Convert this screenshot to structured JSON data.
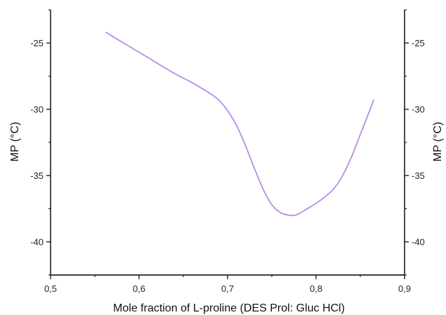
{
  "chart_data": {
    "type": "line",
    "title": "",
    "xlabel": "Mole fraction of L-proline  (DES Prol: Gluc HCl)",
    "ylabel": "MP (°C)",
    "ylabel_right": "MP (°C)",
    "xlim": [
      0.5,
      0.9
    ],
    "ylim": [
      -42.5,
      -22.5
    ],
    "xticks": [
      0.5,
      0.6,
      0.7,
      0.8,
      0.9
    ],
    "xtick_labels": [
      "0,5",
      "0,6",
      "0,7",
      "0,8",
      "0,9"
    ],
    "yticks": [
      -25,
      -30,
      -35,
      -40
    ],
    "ytick_labels": [
      "-25",
      "-30",
      "-35",
      "-40"
    ],
    "grid": false,
    "series": [
      {
        "color": "#b98be8",
        "x": [
          0.5625,
          0.58,
          0.6,
          0.62,
          0.64,
          0.66,
          0.68,
          0.69,
          0.7,
          0.71,
          0.72,
          0.73,
          0.74,
          0.75,
          0.76,
          0.77,
          0.775,
          0.78,
          0.79,
          0.8,
          0.81,
          0.82,
          0.83,
          0.84,
          0.85,
          0.86,
          0.865
        ],
        "y": [
          -24.2,
          -24.9,
          -25.7,
          -26.5,
          -27.3,
          -28.0,
          -28.8,
          -29.3,
          -30.1,
          -31.2,
          -32.7,
          -34.4,
          -36.0,
          -37.2,
          -37.8,
          -38.0,
          -38.0,
          -37.9,
          -37.5,
          -37.1,
          -36.6,
          -36.0,
          -35.0,
          -33.6,
          -31.9,
          -30.2,
          -29.3
        ]
      }
    ]
  }
}
